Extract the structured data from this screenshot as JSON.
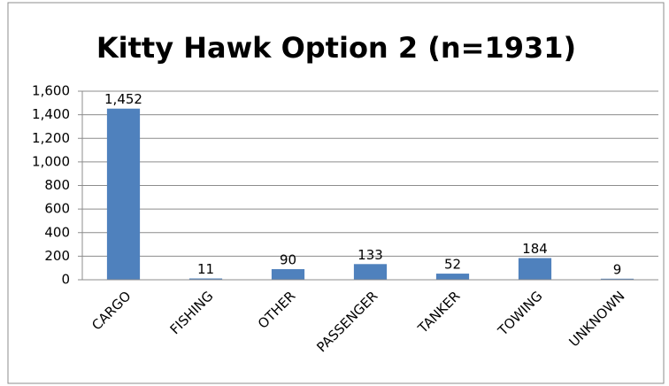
{
  "chart_data": {
    "type": "bar",
    "title": "Kitty Hawk Option 2 (n=1931)",
    "categories": [
      "CARGO",
      "FISHING",
      "OTHER",
      "PASSENGER",
      "TANKER",
      "TOWING",
      "UNKNOWN"
    ],
    "values": [
      1452,
      11,
      90,
      133,
      52,
      184,
      9
    ],
    "value_labels": [
      "1,452",
      "11",
      "90",
      "133",
      "52",
      "184",
      "9"
    ],
    "color": "#4f81bd",
    "ylim": [
      0,
      1600
    ],
    "yticks": [
      0,
      200,
      400,
      600,
      800,
      {
        "value": 1000,
        "label": "1,000"
      },
      {
        "value": 1200,
        "label": "1,200"
      },
      {
        "value": 1400,
        "label": "1,400"
      },
      {
        "value": 1600,
        "label": "1,600"
      }
    ],
    "grid": true
  }
}
